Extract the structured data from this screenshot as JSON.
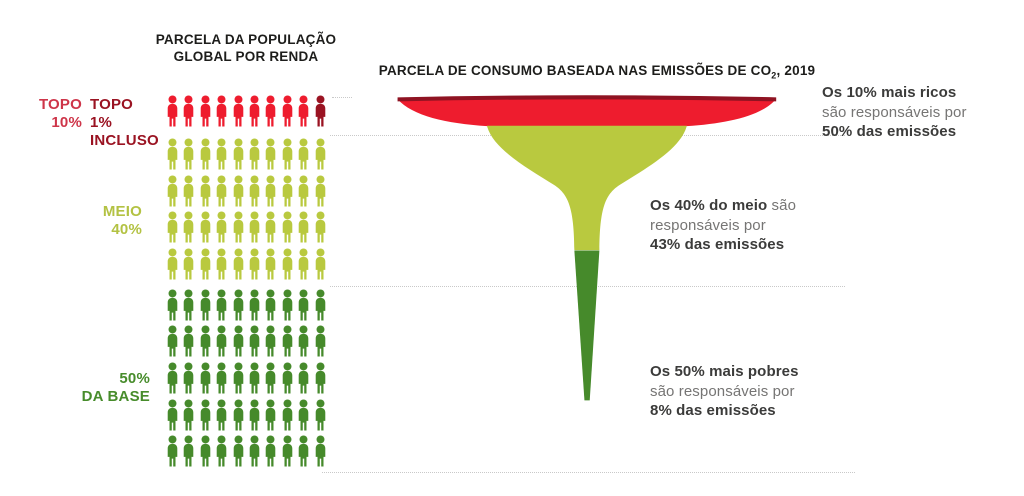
{
  "titles": {
    "left_line1": "PARCELA DA POPULAÇÃO",
    "left_line2": "GLOBAL POR RENDA",
    "right_prefix": "PARCELA DE CONSUMO BASEADA NAS EMISSÕES DE CO",
    "right_sub": "2",
    "right_suffix": ", 2019"
  },
  "row_labels": {
    "top10_line1": "TOPO",
    "top10_line2": "10%",
    "top1_line1": "TOPO 1%",
    "top1_line2": "INCLUSO",
    "meio_line1": "MEIO",
    "meio_line2": "40%",
    "base_line1": "50%",
    "base_line2": "DA BASE"
  },
  "annotations": {
    "rich": {
      "l1": "Os 10% mais ricos",
      "l2": "são responsáveis por",
      "l3": "50% das emissões"
    },
    "middle": {
      "l1b": "Os 40% do meio",
      "l1r": " são",
      "l2": "responsáveis por",
      "l3": "43% das emissões"
    },
    "poor": {
      "l1": "Os 50% mais pobres",
      "l2": "são responsáveis por",
      "l3": "8% das emissões"
    }
  },
  "colors": {
    "red": "#EE1C2E",
    "darkred": "#9A1322",
    "band": "#8F1322",
    "mid": "#B9C93F",
    "base": "#468A2B",
    "label_red": "#CE3549",
    "label_darkred": "#9A1322",
    "label_mid": "#B3C243",
    "label_base": "#478C2B",
    "title_black": "#1D1D1B"
  },
  "pictogram": {
    "rows": [
      {
        "group": "top-10",
        "gap": "",
        "icons": [
          "red",
          "red",
          "red",
          "red",
          "red",
          "red",
          "red",
          "red",
          "red",
          "darkred"
        ]
      },
      {
        "group": "middle-40",
        "gap": "mid",
        "icons": [
          "mid",
          "mid",
          "mid",
          "mid",
          "mid",
          "mid",
          "mid",
          "mid",
          "mid",
          "mid"
        ]
      },
      {
        "group": "middle-40",
        "gap": "",
        "icons": [
          "mid",
          "mid",
          "mid",
          "mid",
          "mid",
          "mid",
          "mid",
          "mid",
          "mid",
          "mid"
        ]
      },
      {
        "group": "middle-40",
        "gap": "",
        "icons": [
          "mid",
          "mid",
          "mid",
          "mid",
          "mid",
          "mid",
          "mid",
          "mid",
          "mid",
          "mid"
        ]
      },
      {
        "group": "middle-40",
        "gap": "",
        "icons": [
          "mid",
          "mid",
          "mid",
          "mid",
          "mid",
          "mid",
          "mid",
          "mid",
          "mid",
          "mid"
        ]
      },
      {
        "group": "bottom-50",
        "gap": "base",
        "icons": [
          "base",
          "base",
          "base",
          "base",
          "base",
          "base",
          "base",
          "base",
          "base",
          "base"
        ]
      },
      {
        "group": "bottom-50",
        "gap": "",
        "icons": [
          "base",
          "base",
          "base",
          "base",
          "base",
          "base",
          "base",
          "base",
          "base",
          "base"
        ]
      },
      {
        "group": "bottom-50",
        "gap": "",
        "icons": [
          "base",
          "base",
          "base",
          "base",
          "base",
          "base",
          "base",
          "base",
          "base",
          "base"
        ]
      },
      {
        "group": "bottom-50",
        "gap": "",
        "icons": [
          "base",
          "base",
          "base",
          "base",
          "base",
          "base",
          "base",
          "base",
          "base",
          "base"
        ]
      },
      {
        "group": "bottom-50",
        "gap": "",
        "icons": [
          "base",
          "base",
          "base",
          "base",
          "base",
          "base",
          "base",
          "base",
          "base",
          "base"
        ]
      }
    ]
  },
  "chart_data": {
    "type": "funnel",
    "title": "PARCELA DE CONSUMO BASEADA NAS EMISSÕES DE CO2, 2019",
    "left_axis_title": "PARCELA DA POPULAÇÃO GLOBAL POR RENDA",
    "unit": "percent",
    "year": "2019",
    "pictogram_total_icons": 100,
    "groups": [
      {
        "label": "Topo 10% (Topo 1% incluso)",
        "population_pct": 10,
        "emissions_pct": 50,
        "color": "#EE1C2E",
        "note": "Os 10% mais ricos são responsáveis por 50% das emissões"
      },
      {
        "label": "Meio 40%",
        "population_pct": 40,
        "emissions_pct": 43,
        "color": "#B9C93F",
        "note": "Os 40% do meio são responsáveis por 43% das emissões"
      },
      {
        "label": "50% da base",
        "population_pct": 50,
        "emissions_pct": 8,
        "color": "#468A2B",
        "note": "Os 50% mais pobres são responsáveis por 8% das emissões"
      }
    ],
    "legend_position": "left",
    "grid": "dotted horizontal separators"
  }
}
